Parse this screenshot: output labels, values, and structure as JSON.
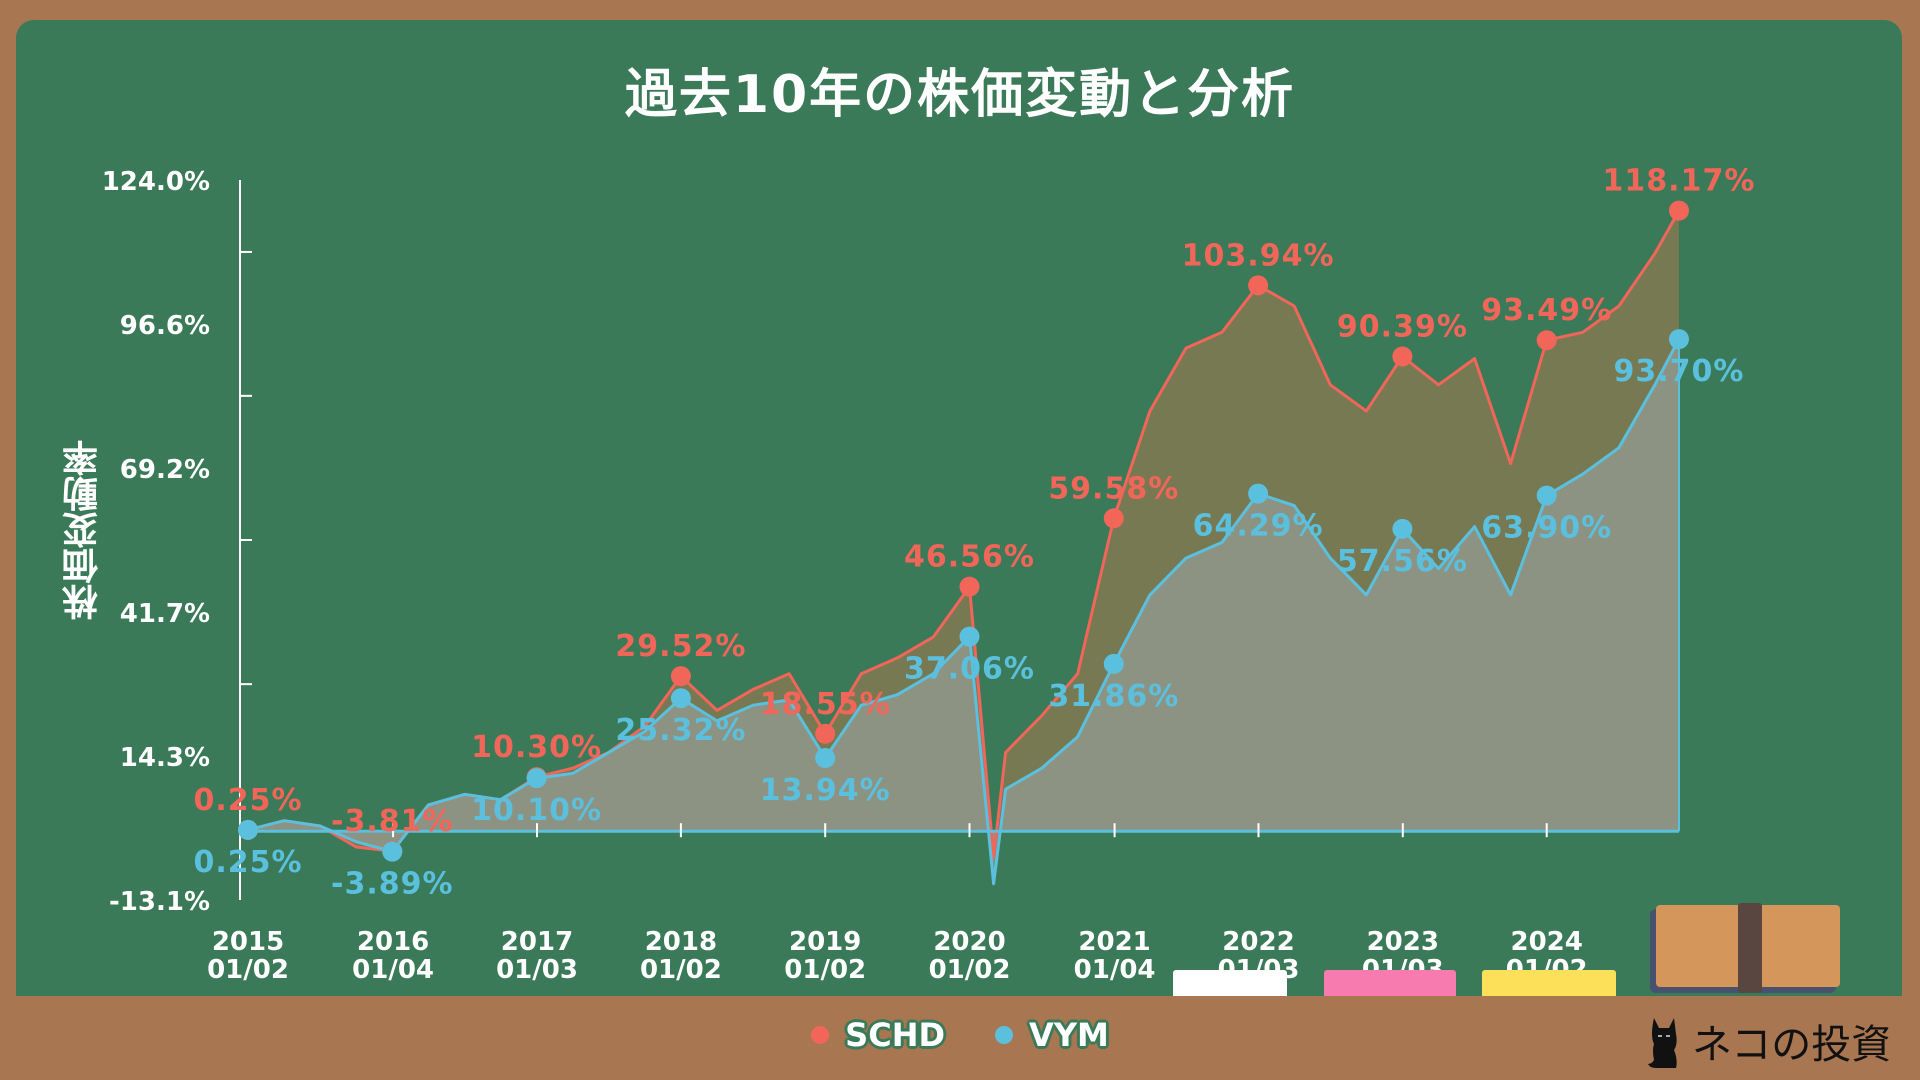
{
  "colors": {
    "schd": "#F2665A",
    "vym": "#5BC0DE",
    "board": "#3A7A58",
    "frame": "#A87650"
  },
  "chart_data": {
    "type": "line",
    "title": "過去10年の株価変動と分析",
    "ylabel": "株価変動率",
    "xlabel": "",
    "ylim": [
      -13.1,
      124.0
    ],
    "yticks": [
      "124.0%",
      "96.6%",
      "69.2%",
      "41.7%",
      "14.3%",
      "-13.1%"
    ],
    "ytick_values": [
      124.0,
      96.6,
      69.2,
      41.7,
      14.3,
      -13.1
    ],
    "xticks": [
      {
        "year": "2015",
        "date": "01/02",
        "x": "2015-01-02"
      },
      {
        "year": "2016",
        "date": "01/04",
        "x": "2016-01-04"
      },
      {
        "year": "2017",
        "date": "01/03",
        "x": "2017-01-03"
      },
      {
        "year": "2018",
        "date": "01/02",
        "x": "2018-01-02"
      },
      {
        "year": "2019",
        "date": "01/02",
        "x": "2019-01-02"
      },
      {
        "year": "2020",
        "date": "01/02",
        "x": "2020-01-02"
      },
      {
        "year": "2021",
        "date": "01/04",
        "x": "2021-01-04"
      },
      {
        "year": "2022",
        "date": "01/03",
        "x": "2022-01-03"
      },
      {
        "year": "2023",
        "date": "01/03",
        "x": "2023-01-03"
      },
      {
        "year": "2024",
        "date": "01/02",
        "x": "2024-01-02"
      }
    ],
    "x": [
      "2015-01",
      "2015-04",
      "2015-07",
      "2015-10",
      "2016-01",
      "2016-04",
      "2016-07",
      "2016-10",
      "2017-01",
      "2017-04",
      "2017-07",
      "2017-10",
      "2018-01",
      "2018-04",
      "2018-07",
      "2018-10",
      "2019-01",
      "2019-04",
      "2019-07",
      "2019-10",
      "2020-01",
      "2020-03",
      "2020-04",
      "2020-07",
      "2020-10",
      "2021-01",
      "2021-04",
      "2021-07",
      "2021-10",
      "2022-01",
      "2022-04",
      "2022-07",
      "2022-10",
      "2023-01",
      "2023-04",
      "2023-07",
      "2023-10",
      "2024-01",
      "2024-04",
      "2024-07",
      "2024-10",
      "2024-12"
    ],
    "series": [
      {
        "name": "SCHD",
        "color": "#F2665A",
        "values": [
          0.25,
          2,
          1,
          -3,
          -3.81,
          5,
          7,
          6,
          10.3,
          12,
          15,
          20,
          29.52,
          23,
          27,
          30,
          18.55,
          30,
          33,
          37,
          46.56,
          -5,
          15,
          22,
          30,
          59.58,
          80,
          92,
          95,
          103.94,
          100,
          85,
          80,
          90.39,
          85,
          90,
          70,
          93.49,
          95,
          100,
          110,
          118.17
        ],
        "labels": [
          {
            "x": "2015-01",
            "text": "0.25%"
          },
          {
            "x": "2016-01",
            "text": "-3.81%"
          },
          {
            "x": "2017-01",
            "text": "10.30%"
          },
          {
            "x": "2018-01",
            "text": "29.52%"
          },
          {
            "x": "2019-01",
            "text": "18.55%"
          },
          {
            "x": "2020-01",
            "text": "46.56%"
          },
          {
            "x": "2021-01",
            "text": "59.58%"
          },
          {
            "x": "2022-01",
            "text": "103.94%"
          },
          {
            "x": "2023-01",
            "text": "90.39%"
          },
          {
            "x": "2024-01",
            "text": "93.49%"
          },
          {
            "x": "2024-12",
            "text": "118.17%"
          }
        ]
      },
      {
        "name": "VYM",
        "color": "#5BC0DE",
        "values": [
          0.25,
          2,
          1,
          -2,
          -3.89,
          5,
          7,
          6,
          10.1,
          11,
          15,
          19,
          25.32,
          21,
          24,
          25,
          13.94,
          24,
          26,
          30,
          37.06,
          -10,
          8,
          12,
          18,
          31.86,
          45,
          52,
          55,
          64.29,
          62,
          52,
          45,
          57.56,
          50,
          58,
          45,
          63.9,
          68,
          73,
          85,
          93.7
        ],
        "labels": [
          {
            "x": "2015-01",
            "text": "0.25%"
          },
          {
            "x": "2016-01",
            "text": "-3.89%"
          },
          {
            "x": "2017-01",
            "text": "10.10%"
          },
          {
            "x": "2018-01",
            "text": "25.32%"
          },
          {
            "x": "2019-01",
            "text": "13.94%"
          },
          {
            "x": "2020-01",
            "text": "37.06%"
          },
          {
            "x": "2021-01",
            "text": "31.86%"
          },
          {
            "x": "2022-01",
            "text": "64.29%"
          },
          {
            "x": "2023-01",
            "text": "57.56%"
          },
          {
            "x": "2024-01",
            "text": "63.90%"
          },
          {
            "x": "2024-12",
            "text": "93.70%"
          }
        ]
      }
    ],
    "legend": "bottom",
    "grid": false
  },
  "legend": {
    "items": [
      {
        "label": "SCHD"
      },
      {
        "label": "VYM"
      }
    ]
  },
  "logo": {
    "text": "ネコの投資"
  }
}
